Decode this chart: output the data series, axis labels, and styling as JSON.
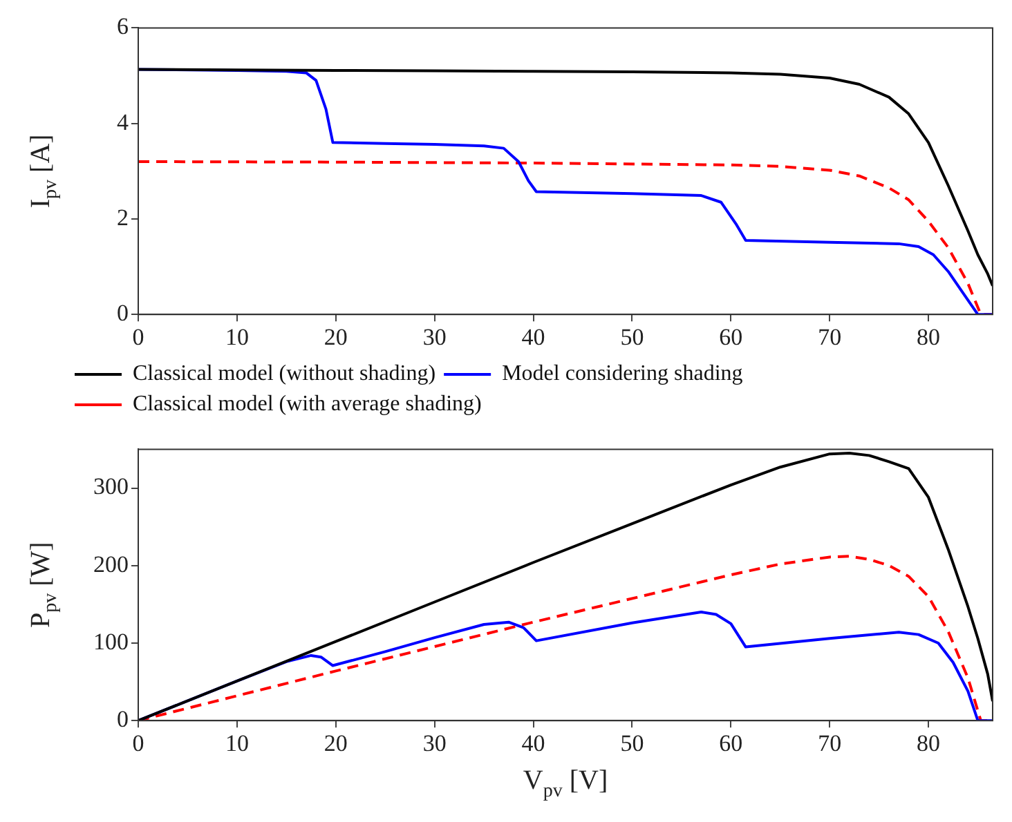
{
  "chart_data": [
    {
      "type": "line",
      "ylabel": "I$_{pv}$ [A]",
      "xlim": [
        0,
        86.5
      ],
      "xticks": [
        0,
        10,
        20,
        30,
        40,
        50,
        60,
        70,
        80
      ],
      "ylim": [
        0,
        6
      ],
      "yticks": [
        0,
        2,
        4,
        6
      ],
      "grid": false,
      "legend": "bottom left",
      "marker": "none",
      "series": [
        {
          "name": "Classical model (without shading)",
          "color": "#000000",
          "line_style": "solid",
          "x": [
            0,
            10,
            20,
            30,
            40,
            50,
            60,
            65,
            70,
            73,
            76,
            78,
            80,
            82,
            84,
            85,
            86,
            86.5
          ],
          "values": [
            5.13,
            5.12,
            5.11,
            5.1,
            5.09,
            5.08,
            5.06,
            5.03,
            4.95,
            4.82,
            4.55,
            4.2,
            3.6,
            2.7,
            1.75,
            1.25,
            0.85,
            0.6
          ]
        },
        {
          "name": "Model considering shading",
          "color": "#0000ff",
          "line_style": "solid",
          "x": [
            0,
            10,
            15,
            17,
            18,
            19,
            19.7,
            25,
            30,
            35,
            37,
            38.5,
            39.5,
            40.3,
            50,
            57,
            59,
            60.5,
            61.5,
            70,
            77,
            79,
            80.5,
            82,
            83.5,
            85,
            86.5
          ],
          "values": [
            5.13,
            5.11,
            5.09,
            5.06,
            4.9,
            4.3,
            3.6,
            3.58,
            3.56,
            3.53,
            3.48,
            3.2,
            2.8,
            2.57,
            2.53,
            2.49,
            2.35,
            1.9,
            1.55,
            1.51,
            1.48,
            1.42,
            1.25,
            0.9,
            0.45,
            0,
            0
          ]
        },
        {
          "name": "Classical model (with average shading)",
          "color": "#ff0000",
          "line_style": "dashed",
          "x": [
            0,
            20,
            40,
            60,
            65,
            70,
            73,
            76,
            78,
            80,
            82,
            84,
            85.3,
            86.5
          ],
          "values": [
            3.2,
            3.19,
            3.17,
            3.13,
            3.1,
            3.02,
            2.9,
            2.65,
            2.4,
            1.95,
            1.4,
            0.65,
            0,
            0
          ]
        }
      ]
    },
    {
      "type": "line",
      "xlabel": "V$_{pv}$ [V]",
      "ylabel": "P$_{pv}$ [W]",
      "xlim": [
        0,
        86.5
      ],
      "xticks": [
        0,
        10,
        20,
        30,
        40,
        50,
        60,
        70,
        80
      ],
      "ylim": [
        0,
        350
      ],
      "yticks": [
        0,
        100,
        200,
        300
      ],
      "grid": false,
      "legend": false,
      "marker": "none",
      "series": [
        {
          "color": "#000000",
          "line_style": "solid",
          "x": [
            0,
            10,
            20,
            30,
            40,
            50,
            60,
            65,
            70,
            72,
            74,
            76,
            78,
            80,
            82,
            84,
            85,
            86,
            86.5
          ],
          "values": [
            0,
            51,
            102,
            153,
            204,
            254,
            304,
            327,
            344,
            345,
            342,
            334,
            325,
            288,
            221,
            147,
            106,
            60,
            25
          ]
        },
        {
          "color": "#0000ff",
          "line_style": "solid",
          "x": [
            0,
            10,
            15,
            17.5,
            18.5,
            19.7,
            25,
            30,
            35,
            37.5,
            39,
            40.3,
            50,
            57,
            58.5,
            60,
            61.5,
            70,
            77,
            79,
            81,
            82.5,
            84,
            85,
            86.5
          ],
          "values": [
            0,
            51,
            76,
            84,
            82,
            71,
            89,
            107,
            124,
            127,
            120,
            103,
            126,
            140,
            137,
            125,
            95,
            106,
            114,
            111,
            100,
            75,
            38,
            0,
            0
          ]
        },
        {
          "color": "#ff0000",
          "line_style": "dashed",
          "x": [
            0,
            20,
            40,
            60,
            65,
            70,
            72,
            74,
            76,
            78,
            80,
            82,
            84,
            85.3,
            86.5
          ],
          "values": [
            0,
            64,
            127,
            188,
            202,
            211,
            212,
            208,
            200,
            186,
            160,
            115,
            55,
            0,
            0
          ]
        }
      ]
    }
  ]
}
